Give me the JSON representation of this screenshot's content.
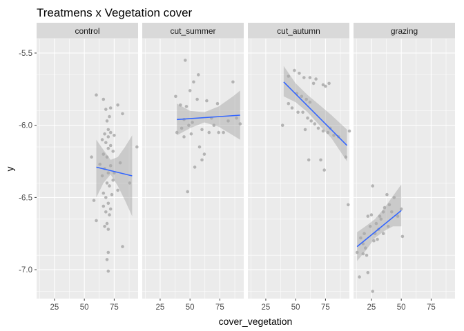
{
  "chart_data": {
    "type": "scatter",
    "title": "Treatmens x Vegetation cover",
    "xlabel": "cover_vegetation",
    "ylabel": "y",
    "xlim": [
      10,
      95
    ],
    "ylim": [
      -7.2,
      -5.4
    ],
    "xticks": [
      25,
      50,
      75
    ],
    "xtick_labels": [
      "25",
      "50",
      "75"
    ],
    "yticks": [
      -5.5,
      -6.0,
      -6.5,
      -7.0
    ],
    "ytick_labels": [
      "-5.5",
      "-6.0",
      "-6.5",
      "-7.0"
    ],
    "grid": true,
    "legend": "none",
    "colors": {
      "panel_bg": "#ebebeb",
      "strip_bg": "#d9d9d9",
      "grid": "#ffffff",
      "point": "#a9a9a9",
      "fit_line": "#3366ff",
      "ribbon": "#999999"
    },
    "facets": [
      {
        "name": "control",
        "points": [
          [
            60,
            -5.79
          ],
          [
            66,
            -5.82
          ],
          [
            68,
            -5.89
          ],
          [
            72,
            -5.88
          ],
          [
            71,
            -5.94
          ],
          [
            69,
            -5.97
          ],
          [
            78,
            -5.86
          ],
          [
            82,
            -5.92
          ],
          [
            70,
            -6.03
          ],
          [
            72,
            -6.05
          ],
          [
            67,
            -6.06
          ],
          [
            70,
            -6.08
          ],
          [
            75,
            -6.07
          ],
          [
            65,
            -6.1
          ],
          [
            68,
            -6.12
          ],
          [
            72,
            -6.14
          ],
          [
            70,
            -6.16
          ],
          [
            74,
            -6.18
          ],
          [
            66,
            -6.2
          ],
          [
            69,
            -6.22
          ],
          [
            56,
            -6.22
          ],
          [
            80,
            -6.26
          ],
          [
            63,
            -6.27
          ],
          [
            72,
            -6.28
          ],
          [
            67,
            -6.3
          ],
          [
            70,
            -6.33
          ],
          [
            65,
            -6.35
          ],
          [
            74,
            -6.38
          ],
          [
            69,
            -6.4
          ],
          [
            71,
            -6.42
          ],
          [
            78,
            -6.45
          ],
          [
            66,
            -6.47
          ],
          [
            73,
            -6.48
          ],
          [
            68,
            -6.5
          ],
          [
            58,
            -6.52
          ],
          [
            70,
            -6.54
          ],
          [
            66,
            -6.56
          ],
          [
            72,
            -6.58
          ],
          [
            68,
            -6.6
          ],
          [
            71,
            -6.62
          ],
          [
            60,
            -6.66
          ],
          [
            69,
            -6.68
          ],
          [
            67,
            -6.7
          ],
          [
            70,
            -6.72
          ],
          [
            82,
            -6.84
          ],
          [
            70,
            -6.88
          ],
          [
            69,
            -6.93
          ],
          [
            70,
            -7.01
          ],
          [
            94,
            -6.15
          ],
          [
            88,
            -6.4
          ],
          [
            75,
            -6.33
          ]
        ],
        "fit": {
          "x": [
            60,
            90
          ],
          "y": [
            -6.29,
            -6.35
          ]
        },
        "ribbon": {
          "x": [
            60,
            66,
            72,
            78,
            84,
            90
          ],
          "lower": [
            -6.5,
            -6.4,
            -6.34,
            -6.42,
            -6.52,
            -6.63
          ],
          "upper": [
            -6.1,
            -6.17,
            -6.24,
            -6.22,
            -6.15,
            -6.07
          ]
        }
      },
      {
        "name": "cut_summer",
        "points": [
          [
            46,
            -5.55
          ],
          [
            53,
            -5.7
          ],
          [
            57,
            -5.65
          ],
          [
            50,
            -5.76
          ],
          [
            38,
            -5.8
          ],
          [
            42,
            -5.86
          ],
          [
            56,
            -5.82
          ],
          [
            47,
            -5.87
          ],
          [
            64,
            -5.83
          ],
          [
            73,
            -5.85
          ],
          [
            86,
            -5.7
          ],
          [
            45,
            -5.96
          ],
          [
            52,
            -5.98
          ],
          [
            49,
            -6.0
          ],
          [
            43,
            -6.02
          ],
          [
            39,
            -6.05
          ],
          [
            51,
            -6.06
          ],
          [
            60,
            -6.03
          ],
          [
            68,
            -5.95
          ],
          [
            66,
            -6.05
          ],
          [
            74,
            -6.05
          ],
          [
            78,
            -6.05
          ],
          [
            89,
            -5.95
          ],
          [
            92,
            -5.99
          ],
          [
            58,
            -6.15
          ],
          [
            45,
            -6.08
          ],
          [
            62,
            -6.2
          ],
          [
            60,
            -6.24
          ],
          [
            54,
            -6.29
          ],
          [
            48,
            -6.46
          ],
          [
            82,
            -5.97
          ],
          [
            70,
            -6.0
          ]
        ],
        "fit": {
          "x": [
            39,
            92
          ],
          "y": [
            -5.96,
            -5.93
          ]
        },
        "ribbon": {
          "x": [
            39,
            50,
            62,
            74,
            86,
            92
          ],
          "lower": [
            -6.07,
            -6.02,
            -5.98,
            -6.01,
            -6.07,
            -6.1
          ],
          "upper": [
            -5.85,
            -5.9,
            -5.91,
            -5.87,
            -5.8,
            -5.76
          ]
        }
      },
      {
        "name": "cut_autumn",
        "points": [
          [
            44,
            -5.66
          ],
          [
            49,
            -5.62
          ],
          [
            53,
            -5.64
          ],
          [
            57,
            -5.67
          ],
          [
            62,
            -5.67
          ],
          [
            65,
            -5.71
          ],
          [
            67,
            -5.68
          ],
          [
            73,
            -5.72
          ],
          [
            75,
            -5.73
          ],
          [
            78,
            -5.71
          ],
          [
            51,
            -5.78
          ],
          [
            55,
            -5.8
          ],
          [
            59,
            -5.82
          ],
          [
            62,
            -5.84
          ],
          [
            44,
            -5.85
          ],
          [
            47,
            -5.88
          ],
          [
            52,
            -5.91
          ],
          [
            60,
            -5.95
          ],
          [
            63,
            -5.97
          ],
          [
            66,
            -5.99
          ],
          [
            69,
            -6.02
          ],
          [
            58,
            -6.03
          ],
          [
            73,
            -6.04
          ],
          [
            77,
            -6.05
          ],
          [
            82,
            -6.07
          ],
          [
            39,
            -6.0
          ],
          [
            61,
            -6.24
          ],
          [
            71,
            -6.24
          ],
          [
            74,
            -6.31
          ],
          [
            86,
            -6.08
          ],
          [
            95,
            -6.04
          ],
          [
            92,
            -6.22
          ],
          [
            94,
            -6.55
          ],
          [
            79,
            -6.02
          ],
          [
            56,
            -5.91
          ]
        ],
        "fit": {
          "x": [
            40,
            93
          ],
          "y": [
            -5.7,
            -6.14
          ]
        },
        "ribbon": {
          "x": [
            40,
            50,
            60,
            70,
            80,
            93
          ],
          "lower": [
            -5.8,
            -5.84,
            -5.91,
            -6.0,
            -6.09,
            -6.25
          ],
          "upper": [
            -5.59,
            -5.71,
            -5.79,
            -5.86,
            -5.93,
            -6.03
          ]
        }
      },
      {
        "name": "grazing",
        "points": [
          [
            13,
            -6.88
          ],
          [
            15,
            -7.05
          ],
          [
            16,
            -6.78
          ],
          [
            18,
            -6.82
          ],
          [
            19,
            -6.75
          ],
          [
            20,
            -6.85
          ],
          [
            22,
            -7.02
          ],
          [
            22,
            -6.63
          ],
          [
            24,
            -6.7
          ],
          [
            25,
            -6.62
          ],
          [
            26,
            -6.42
          ],
          [
            26,
            -7.15
          ],
          [
            27,
            -6.8
          ],
          [
            28,
            -6.75
          ],
          [
            29,
            -6.68
          ],
          [
            30,
            -6.79
          ],
          [
            32,
            -6.63
          ],
          [
            33,
            -6.65
          ],
          [
            35,
            -6.6
          ],
          [
            36,
            -6.57
          ],
          [
            38,
            -6.48
          ],
          [
            39,
            -6.7
          ],
          [
            40,
            -6.55
          ],
          [
            42,
            -6.6
          ],
          [
            44,
            -6.5
          ],
          [
            47,
            -6.63
          ],
          [
            50,
            -6.58
          ],
          [
            51,
            -6.77
          ],
          [
            35,
            -6.75
          ],
          [
            21,
            -6.9
          ],
          [
            31,
            -6.72
          ],
          [
            18,
            -6.89
          ]
        ],
        "fit": {
          "x": [
            13,
            50
          ],
          "y": [
            -6.84,
            -6.59
          ]
        },
        "ribbon": {
          "x": [
            13,
            20,
            28,
            36,
            43,
            50
          ],
          "lower": [
            -6.94,
            -6.87,
            -6.78,
            -6.73,
            -6.7,
            -6.7
          ],
          "upper": [
            -6.74,
            -6.7,
            -6.65,
            -6.57,
            -6.49,
            -6.41
          ]
        }
      }
    ]
  }
}
